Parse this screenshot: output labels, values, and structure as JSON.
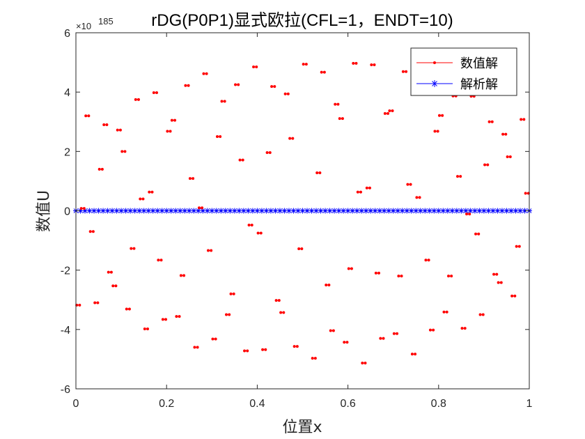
{
  "chart_data": {
    "type": "scatter",
    "title": "rDG(P0P1)显式欧拉(CFL=1，ENDT=10)",
    "xlabel": "位置x",
    "ylabel": "数值U",
    "y_exponent_label": "×10",
    "y_exponent_power": "185",
    "xlim": [
      0,
      1
    ],
    "ylim": [
      -6,
      6
    ],
    "xticks": [
      "0",
      "0.2",
      "0.4",
      "0.6",
      "0.8",
      "1"
    ],
    "yticks": [
      "-6",
      "-4",
      "-2",
      "0",
      "2",
      "4",
      "6"
    ],
    "grid": false,
    "legend_position": "top-right",
    "series": [
      {
        "name": "数值解",
        "color": "#ff0000",
        "marker": "dot",
        "points": [
          [
            0.005,
            -3.18
          ],
          [
            0.015,
            0.08
          ],
          [
            0.025,
            3.2
          ],
          [
            0.035,
            -0.7
          ],
          [
            0.045,
            -3.1
          ],
          [
            0.055,
            1.4
          ],
          [
            0.065,
            2.9
          ],
          [
            0.075,
            -2.07
          ],
          [
            0.085,
            -2.53
          ],
          [
            0.095,
            2.72
          ],
          [
            0.105,
            2.0
          ],
          [
            0.115,
            -3.31
          ],
          [
            0.125,
            -1.27
          ],
          [
            0.135,
            3.75
          ],
          [
            0.145,
            0.4
          ],
          [
            0.155,
            -3.98
          ],
          [
            0.165,
            0.63
          ],
          [
            0.175,
            3.98
          ],
          [
            0.185,
            -1.66
          ],
          [
            0.195,
            -3.66
          ],
          [
            0.205,
            2.68
          ],
          [
            0.215,
            3.05
          ],
          [
            0.225,
            -3.56
          ],
          [
            0.235,
            -2.18
          ],
          [
            0.245,
            4.22
          ],
          [
            0.255,
            1.09
          ],
          [
            0.265,
            -4.6
          ],
          [
            0.275,
            0.1
          ],
          [
            0.285,
            4.62
          ],
          [
            0.295,
            -1.34
          ],
          [
            0.305,
            -4.32
          ],
          [
            0.315,
            2.5
          ],
          [
            0.325,
            3.69
          ],
          [
            0.335,
            -3.5
          ],
          [
            0.345,
            -2.8
          ],
          [
            0.355,
            4.25
          ],
          [
            0.365,
            1.71
          ],
          [
            0.375,
            -4.72
          ],
          [
            0.385,
            -0.48
          ],
          [
            0.395,
            4.85
          ],
          [
            0.405,
            -0.75
          ],
          [
            0.415,
            -4.68
          ],
          [
            0.425,
            1.96
          ],
          [
            0.435,
            4.19
          ],
          [
            0.445,
            -3.02
          ],
          [
            0.455,
            -3.43
          ],
          [
            0.465,
            3.94
          ],
          [
            0.475,
            2.44
          ],
          [
            0.485,
            -4.57
          ],
          [
            0.495,
            -1.28
          ],
          [
            0.505,
            4.94
          ],
          [
            0.525,
            -4.97
          ],
          [
            0.535,
            1.28
          ],
          [
            0.545,
            4.67
          ],
          [
            0.555,
            -2.5
          ],
          [
            0.565,
            -4.04
          ],
          [
            0.575,
            3.59
          ],
          [
            0.585,
            3.11
          ],
          [
            0.595,
            -4.43
          ],
          [
            0.605,
            -1.95
          ],
          [
            0.615,
            4.97
          ],
          [
            0.625,
            0.63
          ],
          [
            0.635,
            -5.13
          ],
          [
            0.645,
            0.77
          ],
          [
            0.655,
            4.92
          ],
          [
            0.665,
            -2.1
          ],
          [
            0.675,
            -4.3
          ],
          [
            0.685,
            3.28
          ],
          [
            0.695,
            3.37
          ],
          [
            0.705,
            -4.14
          ],
          [
            0.715,
            -2.2
          ],
          [
            0.725,
            4.69
          ],
          [
            0.735,
            0.89
          ],
          [
            0.745,
            -4.83
          ],
          [
            0.755,
            0.45
          ],
          [
            0.775,
            -1.66
          ],
          [
            0.785,
            -4.02
          ],
          [
            0.795,
            2.68
          ],
          [
            0.805,
            3.21
          ],
          [
            0.815,
            -3.41
          ],
          [
            0.825,
            -2.2
          ],
          [
            0.835,
            3.87
          ],
          [
            0.845,
            1.16
          ],
          [
            0.855,
            -3.96
          ],
          [
            0.865,
            -0.11
          ],
          [
            0.875,
            3.86
          ],
          [
            0.885,
            -0.78
          ],
          [
            0.895,
            -3.5
          ],
          [
            0.905,
            1.55
          ],
          [
            0.915,
            3.0
          ],
          [
            0.925,
            -2.14
          ],
          [
            0.935,
            -2.42
          ],
          [
            0.945,
            2.58
          ],
          [
            0.955,
            1.82
          ],
          [
            0.965,
            -2.87
          ],
          [
            0.975,
            -1.2
          ],
          [
            0.985,
            3.08
          ],
          [
            0.995,
            0.59
          ]
        ]
      },
      {
        "name": "解析解",
        "color": "#0000ff",
        "marker": "asterisk",
        "x_start": 0,
        "x_step": 0.01,
        "count": 101,
        "value": 0
      }
    ]
  }
}
